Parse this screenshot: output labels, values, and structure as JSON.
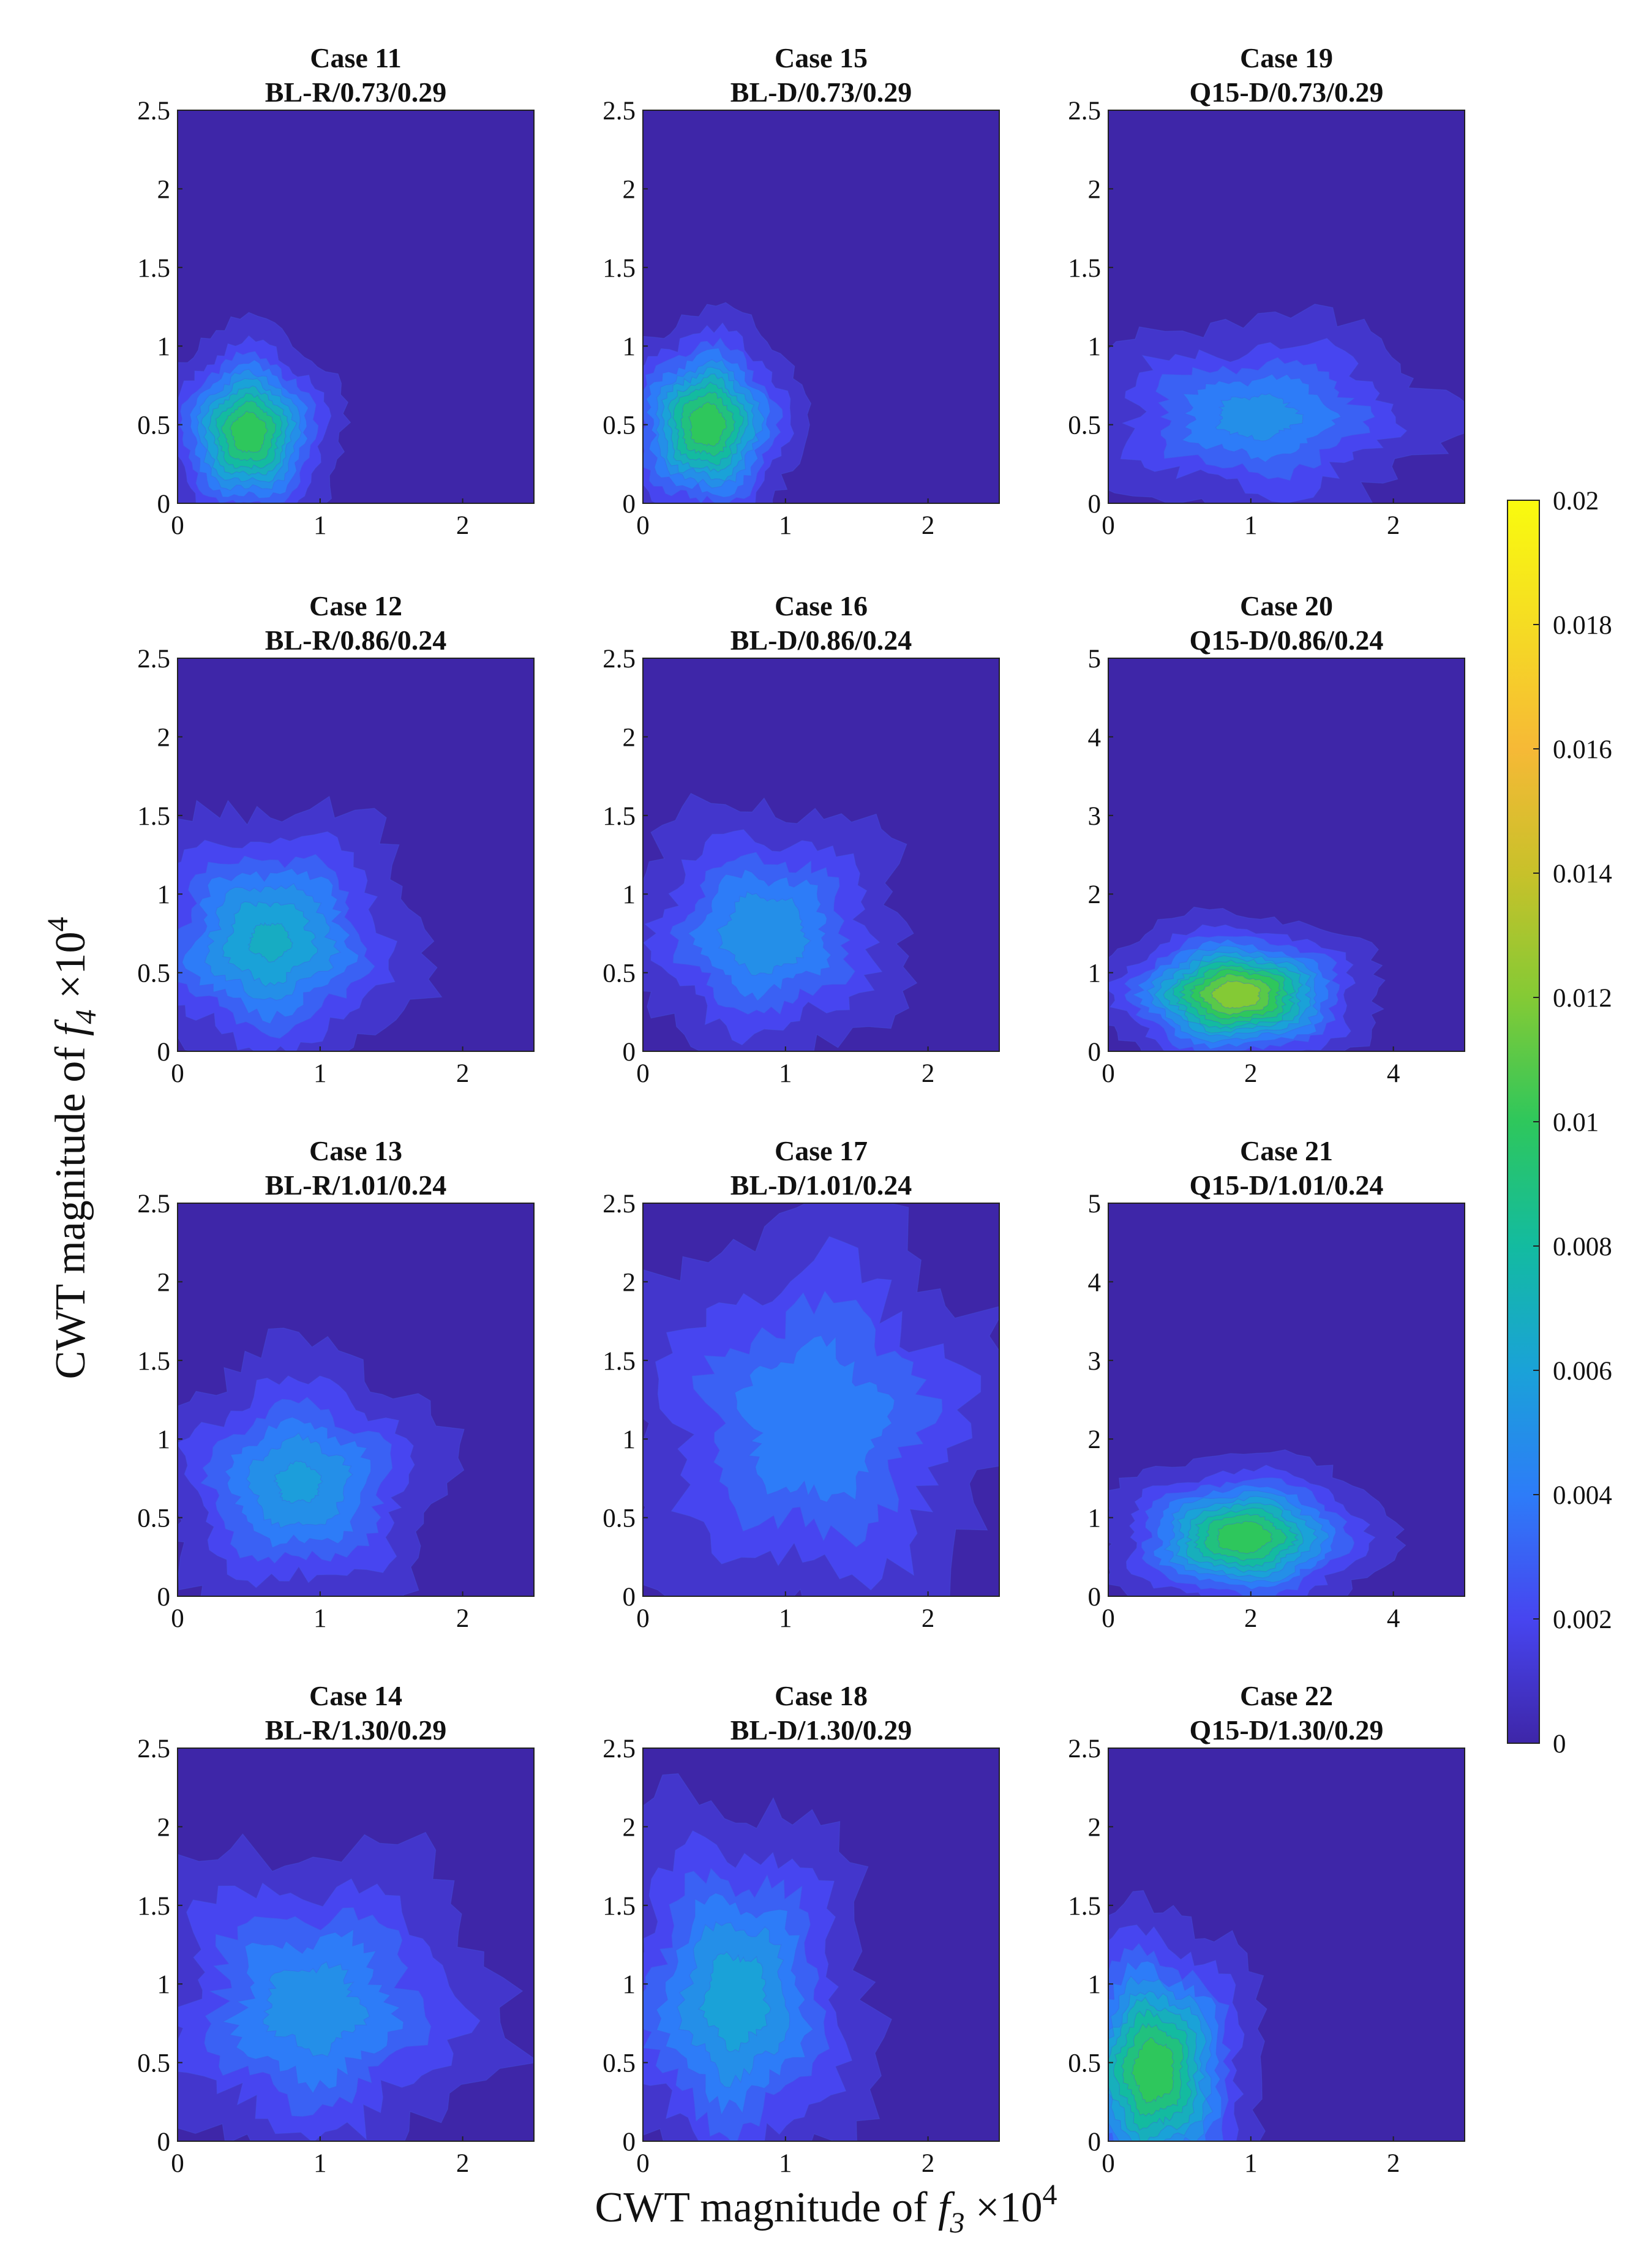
{
  "chart_data": {
    "type": "heatmap",
    "subtype": "filled-contour grid",
    "xlabel": "CWT magnitude of f3 ×10^4",
    "ylabel": "CWT magnitude of f4 ×10^4",
    "xlabel_parts": {
      "prefix": "CWT magnitude of ",
      "var": "f",
      "sub": "3",
      "times": " ×10",
      "exp": "4"
    },
    "ylabel_parts": {
      "prefix": "CWT magnitude of ",
      "var": "f",
      "sub": "4",
      "times": " ×10",
      "exp": "4"
    },
    "colorbar": {
      "min": 0,
      "max": 0.02,
      "ticks": [
        "0",
        "0.002",
        "0.004",
        "0.006",
        "0.008",
        "0.01",
        "0.012",
        "0.014",
        "0.016",
        "0.018",
        "0.02"
      ],
      "colormap": [
        "#3e26a8",
        "#4745f0",
        "#2d7cf8",
        "#1aa2d8",
        "#13bba0",
        "#2ec75c",
        "#84ca35",
        "#c8c12a",
        "#f6b936",
        "#f5dc23",
        "#f9fb0e"
      ]
    },
    "panels": [
      {
        "case": "Case 11",
        "label": "BL-R/0.73/0.29",
        "xlim": [
          0,
          2.5
        ],
        "ylim": [
          0,
          2.5
        ],
        "xticks": [
          "0",
          "1",
          "2"
        ],
        "yticks": [
          "0",
          "0.5",
          "1",
          "1.5",
          "2",
          "2.5"
        ],
        "blob": {
          "cx": 0.5,
          "cy": 0.45,
          "rx": 0.6,
          "ry": 0.62,
          "peak": 0.0105,
          "rough": 0.12
        }
      },
      {
        "case": "Case 15",
        "label": "BL-D/0.73/0.29",
        "xlim": [
          0,
          2.5
        ],
        "ylim": [
          0,
          2.5
        ],
        "xticks": [
          "0",
          "1",
          "2"
        ],
        "yticks": [
          "0",
          "0.5",
          "1",
          "1.5",
          "2",
          "2.5"
        ],
        "blob": {
          "cx": 0.45,
          "cy": 0.5,
          "rx": 0.62,
          "ry": 0.65,
          "peak": 0.0105,
          "rough": 0.14
        }
      },
      {
        "case": "Case 19",
        "label": "Q15-D/0.73/0.29",
        "xlim": [
          0,
          2.5
        ],
        "ylim": [
          0,
          2.5
        ],
        "xticks": [
          "0",
          "1",
          "2"
        ],
        "yticks": [
          "0",
          "0.5",
          "1",
          "1.5",
          "2",
          "2.5"
        ],
        "blob": {
          "cx": 1.05,
          "cy": 0.55,
          "rx": 1.35,
          "ry": 0.65,
          "peak": 0.005,
          "rough": 0.22
        }
      },
      {
        "case": "Case 12",
        "label": "BL-R/0.86/0.24",
        "xlim": [
          0,
          2.5
        ],
        "ylim": [
          0,
          2.5
        ],
        "xticks": [
          "0",
          "1",
          "2"
        ],
        "yticks": [
          "0",
          "0.5",
          "1",
          "1.5",
          "2",
          "2.5"
        ],
        "blob": {
          "cx": 0.65,
          "cy": 0.7,
          "rx": 1.05,
          "ry": 0.85,
          "peak": 0.0068,
          "rough": 0.18
        }
      },
      {
        "case": "Case 16",
        "label": "BL-D/0.86/0.24",
        "xlim": [
          0,
          2.5
        ],
        "ylim": [
          0,
          2.5
        ],
        "xticks": [
          "0",
          "1",
          "2"
        ],
        "yticks": [
          "0",
          "0.5",
          "1",
          "1.5",
          "2",
          "2.5"
        ],
        "blob": {
          "cx": 0.85,
          "cy": 0.75,
          "rx": 1.05,
          "ry": 0.85,
          "peak": 0.0055,
          "rough": 0.2
        }
      },
      {
        "case": "Case 20",
        "label": "Q15-D/0.86/0.24",
        "xlim": [
          0,
          5
        ],
        "ylim": [
          0,
          5
        ],
        "xticks": [
          "0",
          "2",
          "4"
        ],
        "yticks": [
          "0",
          "1",
          "2",
          "3",
          "4",
          "5"
        ],
        "blob": {
          "cx": 1.8,
          "cy": 0.72,
          "rx": 1.8,
          "ry": 0.9,
          "peak": 0.0125,
          "rough": 0.12
        }
      },
      {
        "case": "Case 13",
        "label": "BL-R/1.01/0.24",
        "xlim": [
          0,
          2.5
        ],
        "ylim": [
          0,
          2.5
        ],
        "xticks": [
          "0",
          "1",
          "2"
        ],
        "yticks": [
          "0",
          "0.5",
          "1",
          "1.5",
          "2",
          "2.5"
        ],
        "blob": {
          "cx": 0.85,
          "cy": 0.72,
          "rx": 1.05,
          "ry": 0.85,
          "peak": 0.0058,
          "rough": 0.18
        }
      },
      {
        "case": "Case 17",
        "label": "BL-D/1.01/0.24",
        "xlim": [
          0,
          2.5
        ],
        "ylim": [
          0,
          2.5
        ],
        "xticks": [
          "0",
          "1",
          "2"
        ],
        "yticks": [
          "0",
          "0.5",
          "1",
          "1.5",
          "2",
          "2.5"
        ],
        "blob": {
          "cx": 1.2,
          "cy": 1.1,
          "rx": 1.5,
          "ry": 1.45,
          "peak": 0.0045,
          "rough": 0.25
        }
      },
      {
        "case": "Case 21",
        "label": "Q15-D/1.01/0.24",
        "xlim": [
          0,
          5
        ],
        "ylim": [
          0,
          5
        ],
        "xticks": [
          "0",
          "2",
          "4"
        ],
        "yticks": [
          "0",
          "1",
          "2",
          "3",
          "4",
          "5"
        ],
        "blob": {
          "cx": 1.9,
          "cy": 0.75,
          "rx": 1.85,
          "ry": 0.95,
          "peak": 0.0105,
          "rough": 0.12
        }
      },
      {
        "case": "Case 14",
        "label": "BL-R/1.30/0.29",
        "xlim": [
          0,
          2.5
        ],
        "ylim": [
          0,
          2.5
        ],
        "xticks": [
          "0",
          "1",
          "2"
        ],
        "yticks": [
          "0",
          "0.5",
          "1",
          "1.5",
          "2",
          "2.5"
        ],
        "blob": {
          "cx": 0.95,
          "cy": 0.85,
          "rx": 1.35,
          "ry": 1.1,
          "peak": 0.0052,
          "rough": 0.25
        }
      },
      {
        "case": "Case 18",
        "label": "BL-D/1.30/0.29",
        "xlim": [
          0,
          2.5
        ],
        "ylim": [
          0,
          2.5
        ],
        "xticks": [
          "0",
          "1",
          "2"
        ],
        "yticks": [
          "0",
          "0.5",
          "1",
          "1.5",
          "2",
          "2.5"
        ],
        "blob": {
          "cx": 0.65,
          "cy": 0.9,
          "rx": 1.0,
          "ry": 1.3,
          "peak": 0.0062,
          "rough": 0.2
        }
      },
      {
        "case": "Case 22",
        "label": "Q15-D/1.30/0.29",
        "xlim": [
          0,
          2.5
        ],
        "ylim": [
          0,
          2.5
        ],
        "xticks": [
          "0",
          "1",
          "2"
        ],
        "yticks": [
          "0",
          "0.5",
          "1",
          "1.5",
          "2",
          "2.5"
        ],
        "blob": {
          "cx": 0.32,
          "cy": 0.45,
          "rx": 0.7,
          "ry": 0.95,
          "peak": 0.0105,
          "rough": 0.15
        }
      }
    ]
  }
}
